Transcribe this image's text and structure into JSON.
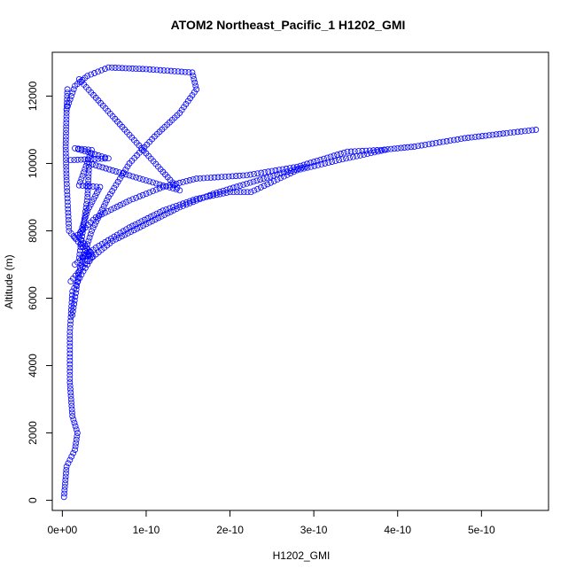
{
  "chart_data": {
    "type": "scatter",
    "title": "ATOM2 Northeast_Pacific_1 H1202_GMI",
    "xlabel": "H1202_GMI",
    "ylabel": "Altitude (m)",
    "xlim": [
      -1.2e-11,
      5.8e-10
    ],
    "ylim": [
      -300,
      13300
    ],
    "x_ticks": [
      0,
      1e-10,
      2e-10,
      3e-10,
      4e-10,
      5e-10
    ],
    "x_tick_labels": [
      "0e+00",
      "1e-10",
      "2e-10",
      "3e-10",
      "4e-10",
      "5e-10"
    ],
    "y_ticks": [
      0,
      2000,
      4000,
      6000,
      8000,
      10000,
      12000
    ],
    "y_tick_labels": [
      "0",
      "2000",
      "4000",
      "6000",
      "8000",
      "10000",
      "12000"
    ],
    "marker": "open-circle",
    "color": "#0000ff",
    "grid": false,
    "legend": "none",
    "series": [
      {
        "points": [
          [
            2e-12,
            100
          ],
          [
            5e-12,
            1000
          ],
          [
            1.5e-11,
            1500
          ],
          [
            1.8e-11,
            2000
          ],
          [
            1.2e-11,
            2500
          ],
          [
            9e-12,
            3500
          ],
          [
            9e-12,
            5000
          ],
          [
            1.2e-11,
            6200
          ],
          [
            2.5e-11,
            6800
          ],
          [
            3.5e-11,
            7200
          ],
          [
            8e-12,
            8000
          ],
          [
            5e-12,
            9500
          ],
          [
            4e-12,
            10500
          ],
          [
            5e-12,
            11500
          ],
          [
            6e-12,
            12200
          ]
        ]
      },
      {
        "points": [
          [
            5e-12,
            11600
          ],
          [
            1.5e-11,
            12300
          ],
          [
            3e-11,
            12600
          ],
          [
            5.5e-11,
            12850
          ],
          [
            1e-10,
            12800
          ],
          [
            1.55e-10,
            12700
          ],
          [
            1.6e-10,
            12200
          ],
          [
            1.4e-10,
            11500
          ],
          [
            1.1e-10,
            10800
          ],
          [
            8e-11,
            10000
          ],
          [
            5.5e-11,
            9000
          ],
          [
            3.5e-11,
            8000
          ],
          [
            2e-11,
            6800
          ],
          [
            1.2e-11,
            5500
          ]
        ]
      },
      {
        "points": [
          [
            1.5e-11,
            7800
          ],
          [
            4e-11,
            8400
          ],
          [
            8e-11,
            8900
          ],
          [
            1.2e-10,
            9300
          ],
          [
            1.6e-10,
            9550
          ],
          [
            2.2e-10,
            9650
          ],
          [
            2.8e-10,
            9900
          ],
          [
            3.4e-10,
            10350
          ],
          [
            3.8e-10,
            10400
          ],
          [
            4.2e-10,
            10500
          ],
          [
            4.8e-10,
            10750
          ],
          [
            5.3e-10,
            10900
          ],
          [
            5.65e-10,
            11000
          ]
        ]
      },
      {
        "points": [
          [
            1.5e-11,
            7000
          ],
          [
            4e-11,
            7500
          ],
          [
            8e-11,
            8100
          ],
          [
            1.2e-10,
            8600
          ],
          [
            1.6e-10,
            8950
          ],
          [
            2e-10,
            9150
          ],
          [
            2.25e-10,
            9150
          ],
          [
            2.8e-10,
            9800
          ],
          [
            3.3e-10,
            10100
          ],
          [
            3.85e-10,
            10400
          ]
        ]
      },
      {
        "points": [
          [
            1e-11,
            6500
          ],
          [
            3e-11,
            7100
          ],
          [
            6e-11,
            7700
          ],
          [
            1e-10,
            8200
          ],
          [
            1.4e-10,
            8700
          ],
          [
            1.8e-10,
            9100
          ],
          [
            2.2e-10,
            9400
          ],
          [
            2.6e-10,
            9700
          ],
          [
            2.9e-10,
            9900
          ]
        ]
      },
      {
        "points": [
          [
            1e-11,
            10100
          ],
          [
            5.5e-11,
            10150
          ],
          [
            1.5e-11,
            10450
          ],
          [
            3.5e-11,
            10400
          ],
          [
            2e-11,
            9350
          ],
          [
            4.5e-11,
            9300
          ],
          [
            3e-11,
            8600
          ],
          [
            2e-11,
            7800
          ],
          [
            3.5e-11,
            7300
          ],
          [
            2e-11,
            7200
          ],
          [
            3e-11,
            9000
          ],
          [
            3.2e-11,
            10000
          ],
          [
            1.4e-10,
            9200
          ],
          [
            2e-11,
            12500
          ]
        ]
      }
    ]
  }
}
